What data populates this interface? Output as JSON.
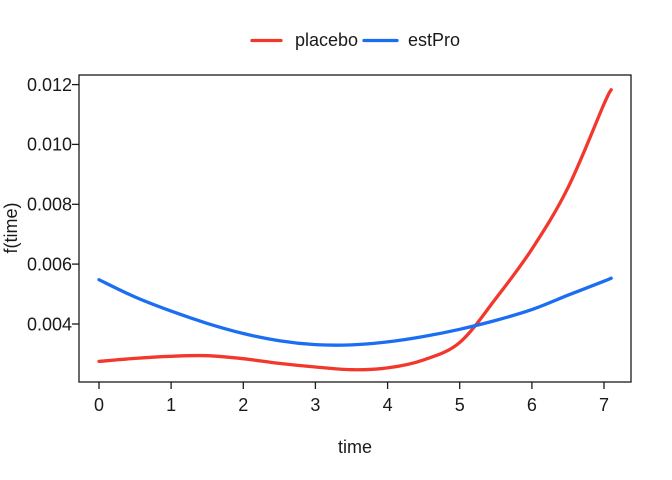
{
  "figure": {
    "background": "#ffffff",
    "axis_color": "#1a1a1a"
  },
  "chart_data": {
    "type": "line",
    "title": "",
    "xlabel": "time",
    "ylabel": "f(time)",
    "xlim": [
      -0.277,
      7.374
    ],
    "ylim": [
      0.00206,
      0.01232
    ],
    "grid": false,
    "x_ticks": [
      0,
      1,
      2,
      3,
      4,
      5,
      6,
      7
    ],
    "x_tick_labels": [
      "0",
      "1",
      "2",
      "3",
      "4",
      "5",
      "6",
      "7"
    ],
    "y_ticks": [
      0.004,
      0.006,
      0.008,
      0.01,
      0.012
    ],
    "y_tick_labels": [
      "0.004",
      "0.006",
      "0.008",
      "0.010",
      "0.012"
    ],
    "legend": {
      "position": "top-center",
      "entries": [
        {
          "label": "placebo",
          "color": "#F2382D"
        },
        {
          "label": "estPro",
          "color": "#1B6EF2"
        }
      ]
    },
    "line_width": 3.3,
    "x": [
      0,
      0.5,
      1,
      1.5,
      2,
      2.5,
      3,
      3.5,
      4,
      4.5,
      5,
      5.5,
      6,
      6.5,
      7,
      7.1
    ],
    "series": [
      {
        "name": "placebo",
        "color": "#F2382D",
        "values": [
          0.00275,
          0.00285,
          0.00292,
          0.00294,
          0.00284,
          0.00268,
          0.00256,
          0.00247,
          0.00253,
          0.0028,
          0.00338,
          0.00485,
          0.0065,
          0.00855,
          0.01135,
          0.01183
        ]
      },
      {
        "name": "estPro",
        "color": "#1B6EF2",
        "values": [
          0.00548,
          0.0049,
          0.00443,
          0.00402,
          0.00368,
          0.00344,
          0.00331,
          0.0033,
          0.0034,
          0.00358,
          0.00382,
          0.00412,
          0.00448,
          0.00496,
          0.00543,
          0.00553
        ]
      }
    ]
  }
}
